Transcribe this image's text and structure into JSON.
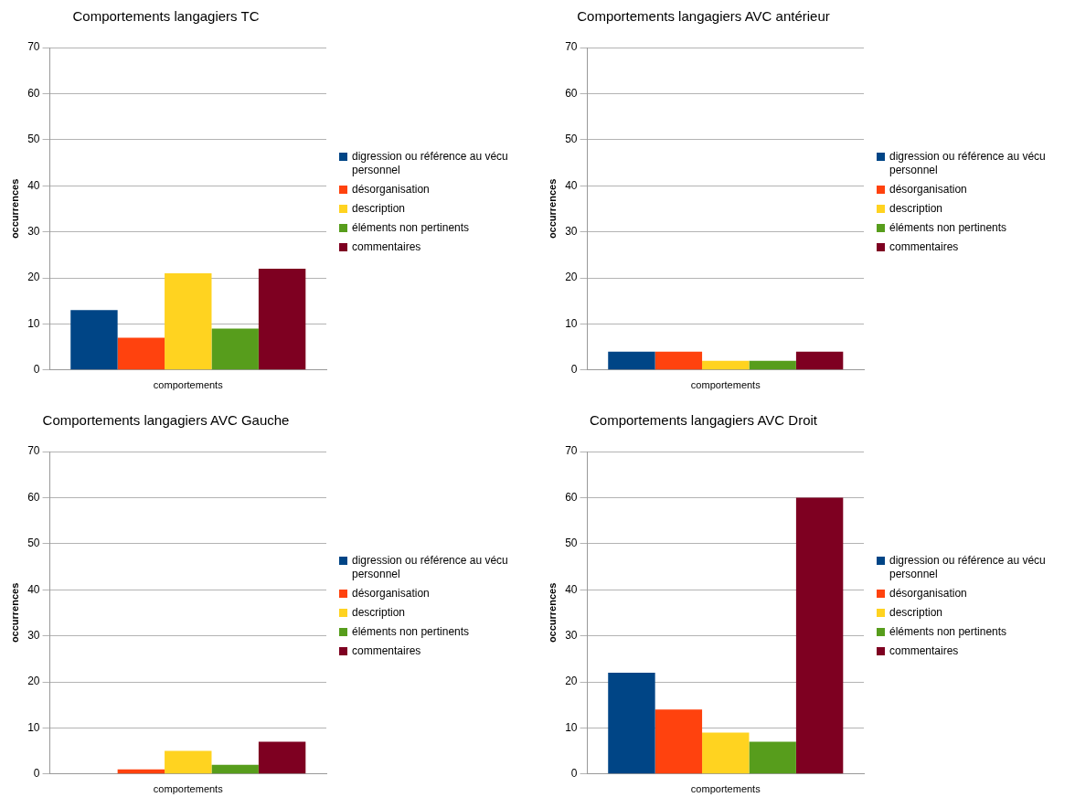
{
  "chart_data": [
    {
      "type": "bar",
      "title": "Comportements langagiers TC",
      "ylabel": "occurrences",
      "categories": [
        "comportements"
      ],
      "ylim": [
        0,
        70
      ],
      "yticks": [
        0,
        10,
        20,
        30,
        40,
        50,
        60,
        70
      ],
      "grid": "y",
      "legend": "right",
      "series": [
        {
          "name": "digression ou référence au vécu personnel",
          "color": "#004586",
          "values": [
            13
          ]
        },
        {
          "name": "désorganisation",
          "color": "#ff420e",
          "values": [
            7
          ]
        },
        {
          "name": "description",
          "color": "#ffd320",
          "values": [
            21
          ]
        },
        {
          "name": "éléments non pertinents",
          "color": "#579d1c",
          "values": [
            9
          ]
        },
        {
          "name": "commentaires",
          "color": "#7e0021",
          "values": [
            22
          ]
        }
      ]
    },
    {
      "type": "bar",
      "title": "Comportements langagiers AVC antérieur",
      "ylabel": "occurrences",
      "categories": [
        "comportements"
      ],
      "ylim": [
        0,
        70
      ],
      "yticks": [
        0,
        10,
        20,
        30,
        40,
        50,
        60,
        70
      ],
      "grid": "y",
      "legend": "right",
      "series": [
        {
          "name": "digression ou référence au vécu personnel",
          "color": "#004586",
          "values": [
            4
          ]
        },
        {
          "name": "désorganisation",
          "color": "#ff420e",
          "values": [
            4
          ]
        },
        {
          "name": "description",
          "color": "#ffd320",
          "values": [
            2
          ]
        },
        {
          "name": "éléments non pertinents",
          "color": "#579d1c",
          "values": [
            2
          ]
        },
        {
          "name": "commentaires",
          "color": "#7e0021",
          "values": [
            4
          ]
        }
      ]
    },
    {
      "type": "bar",
      "title": "Comportements langagiers AVC Gauche",
      "ylabel": "occurrences",
      "categories": [
        "comportements"
      ],
      "ylim": [
        0,
        70
      ],
      "yticks": [
        0,
        10,
        20,
        30,
        40,
        50,
        60,
        70
      ],
      "grid": "y",
      "legend": "right",
      "series": [
        {
          "name": "digression ou référence au vécu personnel",
          "color": "#004586",
          "values": [
            0
          ]
        },
        {
          "name": "désorganisation",
          "color": "#ff420e",
          "values": [
            1
          ]
        },
        {
          "name": "description",
          "color": "#ffd320",
          "values": [
            5
          ]
        },
        {
          "name": "éléments non pertinents",
          "color": "#579d1c",
          "values": [
            2
          ]
        },
        {
          "name": "commentaires",
          "color": "#7e0021",
          "values": [
            7
          ]
        }
      ]
    },
    {
      "type": "bar",
      "title": "Comportements langagiers AVC Droit",
      "ylabel": "occurrences",
      "categories": [
        "comportements"
      ],
      "ylim": [
        0,
        70
      ],
      "yticks": [
        0,
        10,
        20,
        30,
        40,
        50,
        60,
        70
      ],
      "grid": "y",
      "legend": "right",
      "series": [
        {
          "name": "digression ou référence au vécu personnel",
          "color": "#004586",
          "values": [
            22
          ]
        },
        {
          "name": "désorganisation",
          "color": "#ff420e",
          "values": [
            14
          ]
        },
        {
          "name": "description",
          "color": "#ffd320",
          "values": [
            9
          ]
        },
        {
          "name": "éléments non pertinents",
          "color": "#579d1c",
          "values": [
            7
          ]
        },
        {
          "name": "commentaires",
          "color": "#7e0021",
          "values": [
            60
          ]
        }
      ]
    }
  ]
}
